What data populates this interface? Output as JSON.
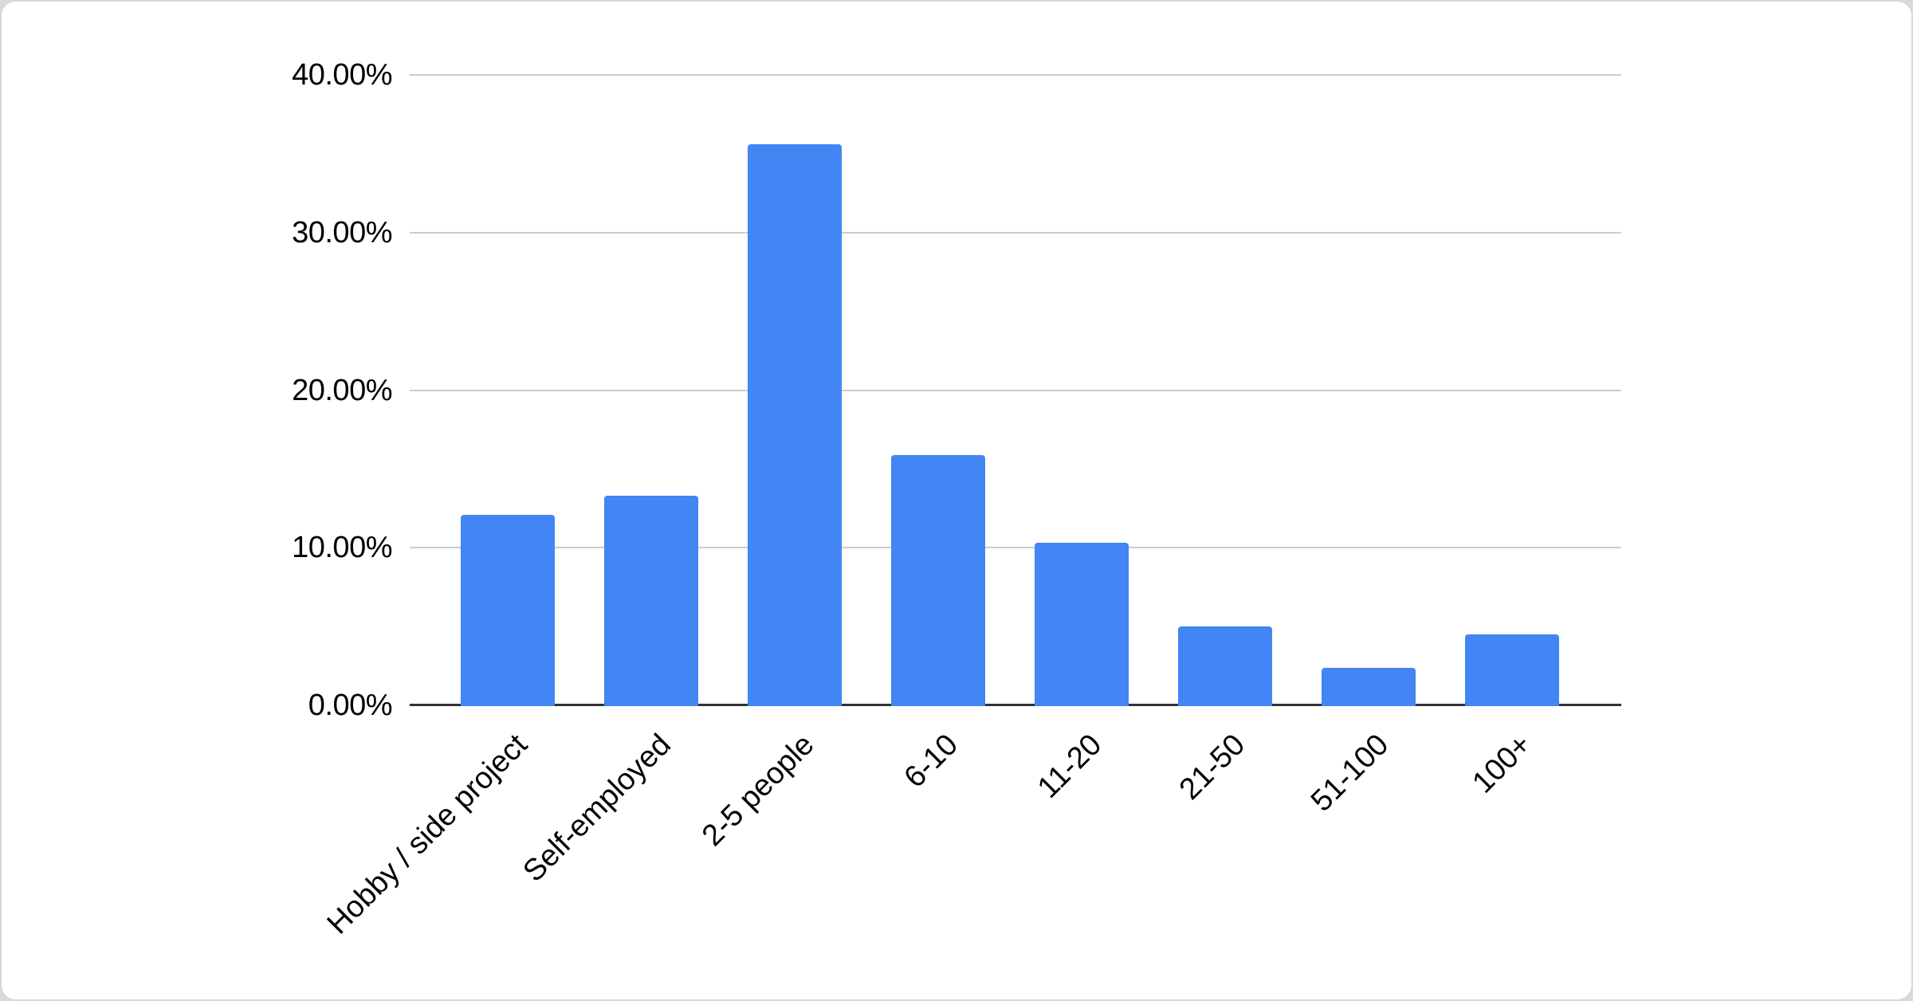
{
  "chart_data": {
    "type": "bar",
    "title": "",
    "categories": [
      "Hobby / side project",
      "Self-employed",
      "2-5 people",
      "6-10",
      "11-20",
      "21-50",
      "51-100",
      "100+"
    ],
    "values": [
      12.1,
      13.3,
      35.6,
      15.9,
      10.3,
      5.0,
      2.4,
      4.5
    ],
    "value_unit": "%",
    "y_ticks": [
      {
        "value": 0,
        "label": "0.00%"
      },
      {
        "value": 10,
        "label": "10.00%"
      },
      {
        "value": 20,
        "label": "20.00%"
      },
      {
        "value": 30,
        "label": "30.00%"
      },
      {
        "value": 40,
        "label": "40.00%"
      }
    ],
    "ylim": [
      0,
      40
    ],
    "xlabel": "",
    "ylabel": "",
    "legend": "none",
    "grid": "horizontal",
    "x_label_rotation_deg": 45,
    "colors": {
      "bar": "#4285f4",
      "gridline": "#cccccc",
      "baseline": "#333333",
      "tick_text": "#000000",
      "card_background": "#ffffff",
      "card_border": "#d5d8dc",
      "page_background": "#d7dadd"
    }
  }
}
